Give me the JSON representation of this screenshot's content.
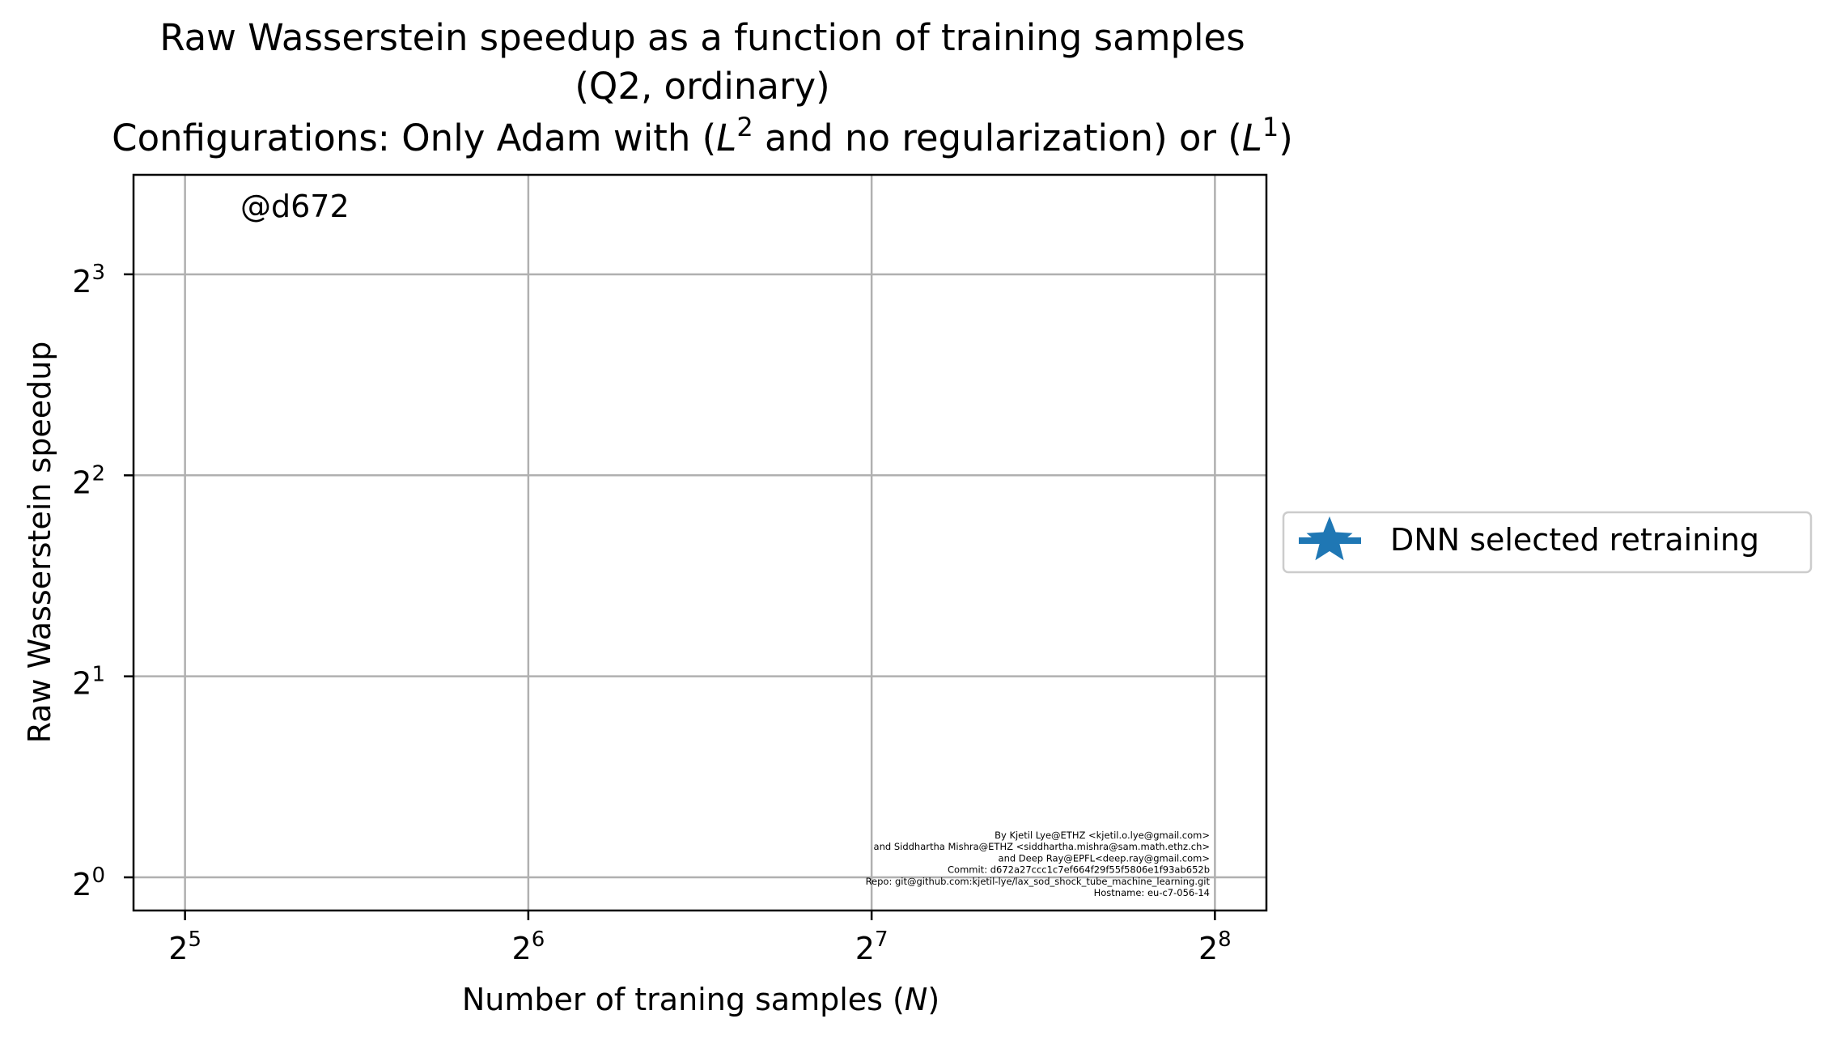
{
  "chart_data": {
    "type": "line",
    "title_lines": [
      "Raw Wasserstein speedup as a function of training samples",
      "(Q2, ordinary)"
    ],
    "subtitle": {
      "prefix": "Configurations: Only Adam with (",
      "l2_base": "L",
      "l2_exp": "2",
      "middle": " and no regularization) or (",
      "l1_base": "L",
      "l1_exp": "1",
      "suffix": ")"
    },
    "xlabel": {
      "text": "Number of traning samples (",
      "var": "N",
      "close": ")"
    },
    "ylabel": "Raw Wasserstein speedup",
    "x_scale": "log2",
    "y_scale": "log2",
    "x_ticks": [
      {
        "base": "2",
        "exp": "5",
        "value": 32
      },
      {
        "base": "2",
        "exp": "6",
        "value": 64
      },
      {
        "base": "2",
        "exp": "7",
        "value": 128
      },
      {
        "base": "2",
        "exp": "8",
        "value": 256
      }
    ],
    "y_ticks": [
      {
        "base": "2",
        "exp": "0",
        "value": 1
      },
      {
        "base": "2",
        "exp": "1",
        "value": 2
      },
      {
        "base": "2",
        "exp": "2",
        "value": 4
      },
      {
        "base": "2",
        "exp": "3",
        "value": 8
      }
    ],
    "xlim_log2": [
      4.85,
      8.15
    ],
    "ylim_log2": [
      -0.165,
      3.495
    ],
    "grid": true,
    "legend_position": "right, outside plot",
    "series": [
      {
        "name": "DNN selected retraining",
        "color": "#1f77b4",
        "marker": "star",
        "x": [],
        "y": []
      }
    ],
    "annotation": "@d672",
    "annotation_color": "#808080",
    "footer_color": "#b0b0b0",
    "footer_lines": [
      "By Kjetil Lye@ETHZ <kjetil.o.lye@gmail.com>",
      "and Siddhartha Mishra@ETHZ <siddhartha.mishra@sam.math.ethz.ch>",
      "and Deep Ray@EPFL<deep.ray@gmail.com>",
      "Commit: d672a27ccc1c7ef664f29f55f5806e1f93ab652b",
      "Repo: git@github.com:kjetil-lye/lax_sod_shock_tube_machine_learning.git",
      "Hostname: eu-c7-056-14"
    ]
  }
}
